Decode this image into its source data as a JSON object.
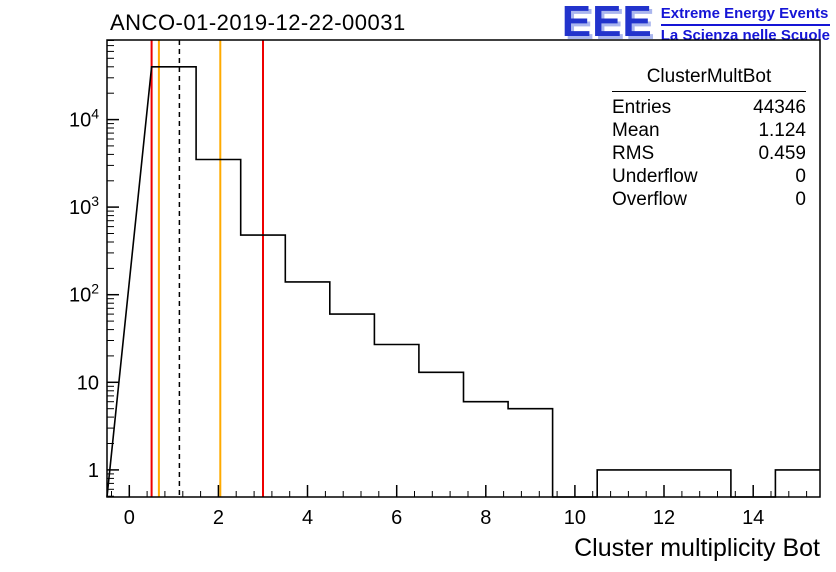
{
  "title": "ANCO-01-2019-12-22-00031",
  "logo": {
    "acronym": "EEE",
    "line1": "Extreme Energy Events",
    "line2": "La Scienza nelle Scuole",
    "color": "#1515d6"
  },
  "stats": {
    "title": "ClusterMultBot",
    "rows": [
      {
        "label": "Entries",
        "value": "44346"
      },
      {
        "label": "Mean",
        "value": "1.124"
      },
      {
        "label": "RMS",
        "value": "0.459"
      },
      {
        "label": "Underflow",
        "value": "0"
      },
      {
        "label": "Overflow",
        "value": "0"
      }
    ]
  },
  "chart_data": {
    "type": "bar",
    "style": "step-histogram",
    "title": "ANCO-01-2019-12-22-00031",
    "xlabel": "Cluster multiplicity Bot",
    "ylabel": "",
    "y_scale": "log",
    "grid": false,
    "legend": false,
    "x_range": [
      -0.5,
      15.5
    ],
    "y_range": [
      0.49,
      81000
    ],
    "bin_width": 1,
    "bin_centers": [
      1,
      2,
      3,
      4,
      5,
      6,
      7,
      8,
      9,
      10,
      11,
      12,
      13,
      14,
      15
    ],
    "counts": [
      40000,
      3500,
      480,
      140,
      60,
      27,
      13,
      6,
      5,
      0,
      1,
      1,
      1,
      0,
      1
    ],
    "x_ticks": [
      0,
      2,
      4,
      6,
      8,
      10,
      12,
      14
    ],
    "line_color": "#000000",
    "vlines": [
      {
        "x": 0.5,
        "color": "#ee0000",
        "style": "solid"
      },
      {
        "x": 0.665,
        "color": "#ffaa00",
        "style": "solid"
      },
      {
        "x": 1.124,
        "color": "#000000",
        "style": "dashed"
      },
      {
        "x": 2.042,
        "color": "#ffaa00",
        "style": "solid"
      },
      {
        "x": 3.0,
        "color": "#ee0000",
        "style": "solid"
      }
    ]
  }
}
